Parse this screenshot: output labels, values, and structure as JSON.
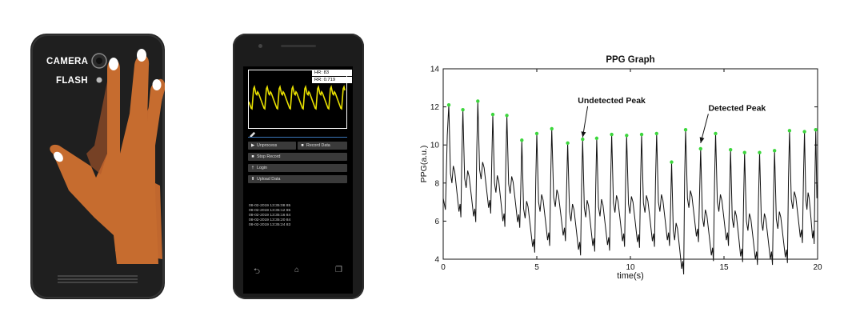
{
  "back_phone": {
    "camera_label": "CAMERA",
    "flash_label": "FLASH"
  },
  "app": {
    "hr_text": "HR: 83",
    "rr_text": "RR: 0.719",
    "buttons": [
      {
        "label": "Unprocess",
        "icon": "play-icon"
      },
      {
        "label": "Record Data",
        "icon": "save-icon"
      },
      {
        "label": "Stop Record",
        "icon": "stop-icon"
      },
      {
        "label": "Login",
        "icon": "user-icon"
      },
      {
        "label": "Upload Data",
        "icon": "upload-icon"
      }
    ],
    "log": [
      "08-02-2019  13:35:08 85",
      "08-02-2019  13:35:12 85",
      "08-02-2019  13:35:16 84",
      "08-02-2019  13:35:20 84",
      "08-02-2019  13:35:24 83"
    ],
    "colors": {
      "waveform": "#e8e000",
      "progress": "#3a75b8"
    }
  },
  "chart_data": {
    "type": "line",
    "title": "PPG Graph",
    "xlabel": "time(s)",
    "ylabel": "PPG(a.u.)",
    "xlim": [
      0,
      20
    ],
    "ylim": [
      4,
      14
    ],
    "xticks": [
      0,
      5,
      10,
      15,
      20
    ],
    "yticks": [
      4,
      6,
      8,
      10,
      12,
      14
    ],
    "grid": false,
    "peaks": {
      "x": [
        0.3,
        1.05,
        1.85,
        2.65,
        3.4,
        4.2,
        5.0,
        5.8,
        6.65,
        7.45,
        8.2,
        9.0,
        9.8,
        10.6,
        11.4,
        12.2,
        12.95,
        13.75,
        14.55,
        15.35,
        16.1,
        16.9,
        17.7,
        18.5,
        19.3,
        19.9
      ],
      "y": [
        12.1,
        11.85,
        12.3,
        11.6,
        11.55,
        10.25,
        10.6,
        10.85,
        10.1,
        10.3,
        10.35,
        10.55,
        10.5,
        10.55,
        10.6,
        9.1,
        10.8,
        9.8,
        10.6,
        9.75,
        9.6,
        9.6,
        9.7,
        10.75,
        10.7,
        10.8
      ],
      "color": "#3cd63c"
    },
    "annotations": [
      {
        "text": "Undetected Peak",
        "x": 9.0,
        "y": 12.2,
        "target_x": 7.45,
        "target_y": 10.4
      },
      {
        "text": "Detected Peak",
        "x": 15.7,
        "y": 11.8,
        "target_x": 13.75,
        "target_y": 10.1
      }
    ]
  }
}
